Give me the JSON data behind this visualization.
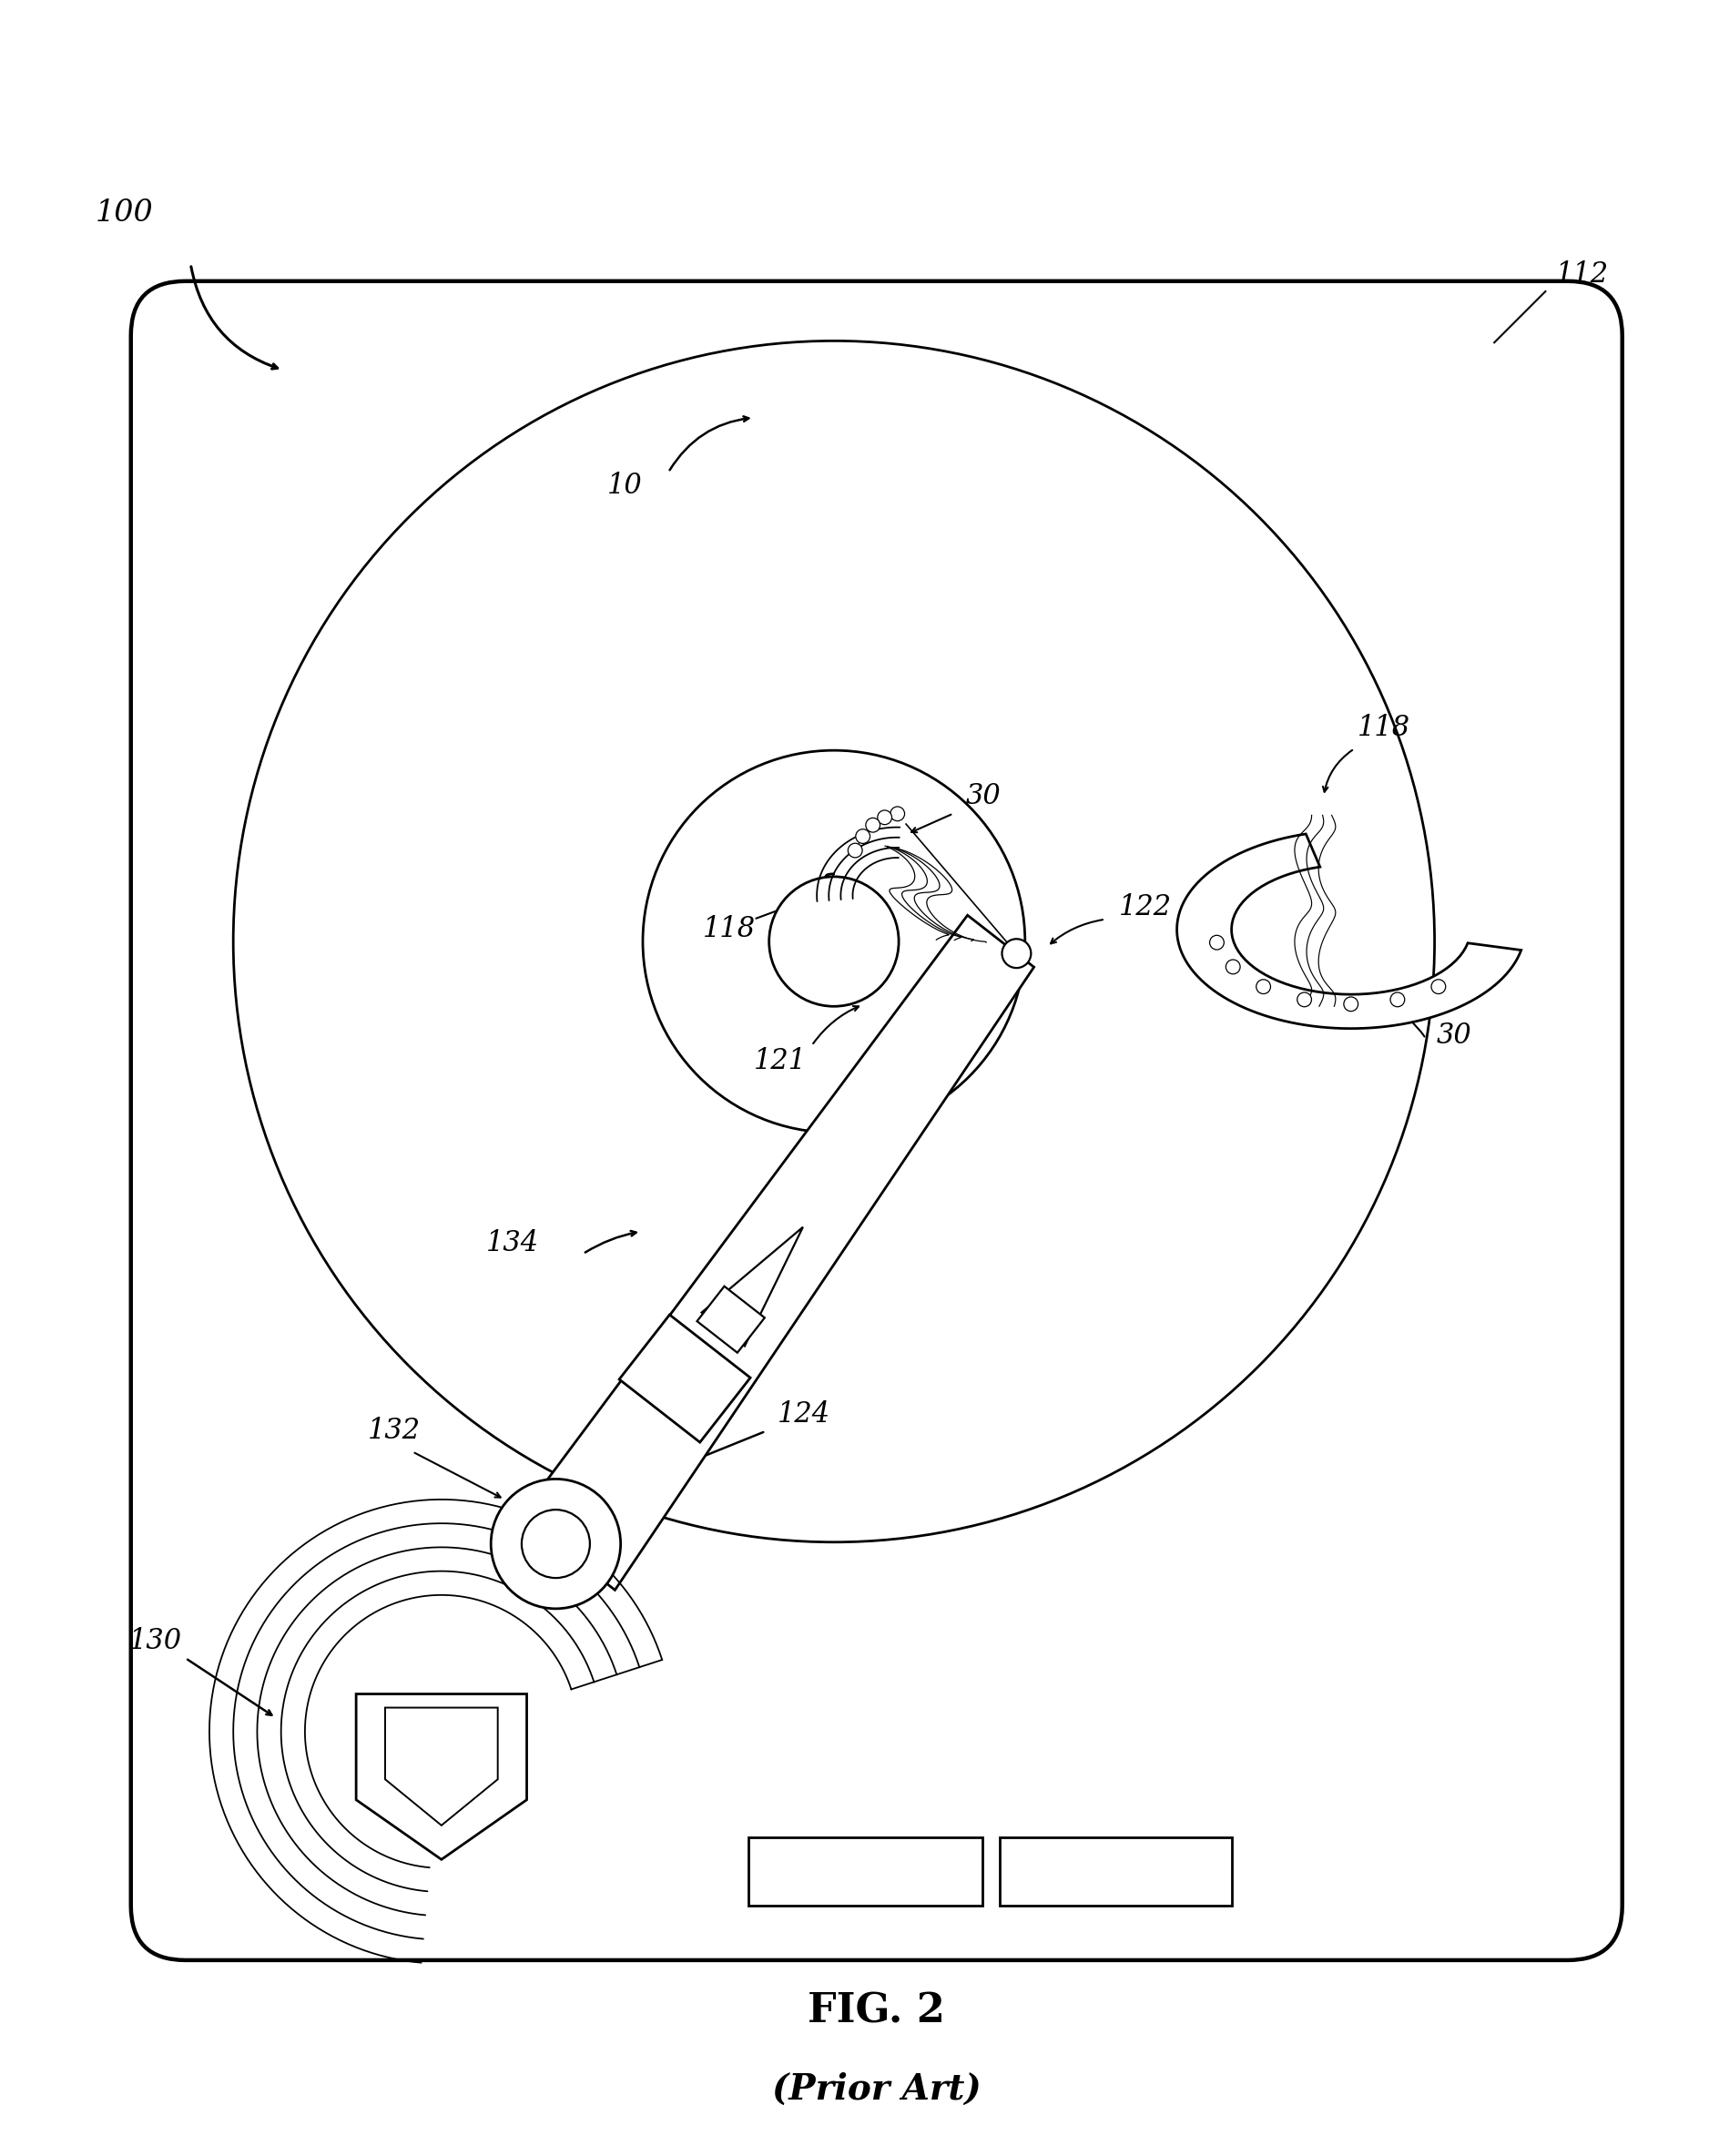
{
  "bg_color": "#ffffff",
  "lc": "#000000",
  "fig_width": 18.88,
  "fig_height": 23.68,
  "title": "FIG. 2",
  "subtitle": "(Prior Art)",
  "label_100": "100",
  "label_10": "10",
  "label_112": "112",
  "label_30a": "30",
  "label_30b": "30",
  "label_118a": "118",
  "label_118b": "118",
  "label_121": "121",
  "label_122": "122",
  "label_124": "124",
  "label_130": "130",
  "label_132": "132",
  "label_134": "134"
}
